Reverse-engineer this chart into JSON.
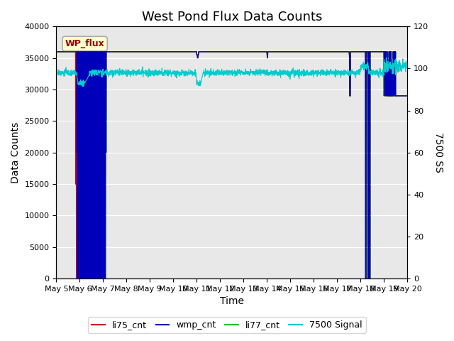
{
  "title": "West Pond Flux Data Counts",
  "xlabel": "Time",
  "ylabel_left": "Data Counts",
  "ylabel_right": "7500 SS",
  "ylim_left": [
    0,
    40000
  ],
  "ylim_right": [
    0,
    120
  ],
  "background_color": "#e8e8e8",
  "annotation_text": "WP_flux",
  "annotation_bg": "#ffffcc",
  "annotation_border": "#aaaaaa",
  "x_start_day": 5,
  "x_end_day": 20,
  "x_ticks": [
    5,
    6,
    7,
    8,
    9,
    10,
    11,
    12,
    13,
    14,
    15,
    16,
    17,
    18,
    19,
    20
  ],
  "x_tick_labels": [
    "May 5",
    "May 6",
    "May 7",
    "May 8",
    "May 9",
    "May 10",
    "May 11",
    "May 12",
    "May 13",
    "May 14",
    "May 15",
    "May 16",
    "May 17",
    "May 18",
    "May 19",
    "May 20"
  ],
  "li75_color": "#cc0000",
  "wmp_color": "#0000bb",
  "li77_color": "#00cc00",
  "signal7500_color": "#00cccc",
  "li75_lw": 0.8,
  "wmp_lw": 0.8,
  "li77_lw": 1.2,
  "signal7500_lw": 0.8,
  "legend_labels": [
    "li75_cnt",
    "wmp_cnt",
    "li77_cnt",
    "7500 Signal"
  ],
  "yticks_left": [
    0,
    5000,
    10000,
    15000,
    20000,
    25000,
    30000,
    35000,
    40000
  ],
  "yticks_right": [
    0,
    20,
    40,
    60,
    80,
    100,
    120
  ],
  "figsize": [
    6.4,
    4.8
  ],
  "dpi": 100
}
